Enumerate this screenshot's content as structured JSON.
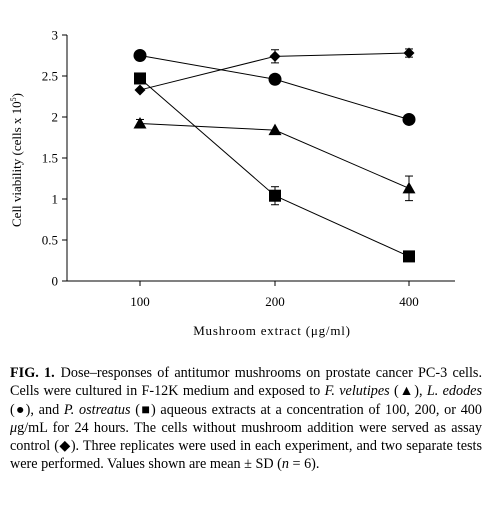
{
  "chart_data": {
    "type": "line",
    "categories": [
      "100",
      "200",
      "400"
    ],
    "ylabel": "Cell viability (cells x 10",
    "ylabel_sup": "5",
    "ylabel_close": ")",
    "xlabel": "Mushroom extract (μg/ml)",
    "ylim": [
      0,
      3
    ],
    "yticks": [
      "0",
      "0.5",
      "1",
      "1.5",
      "2",
      "2.5",
      "3"
    ],
    "grid": false,
    "legend": "none",
    "series": [
      {
        "marker": "diamond",
        "values": [
          2.33,
          2.74,
          2.78
        ],
        "errors": [
          0,
          0.08,
          0.05
        ]
      },
      {
        "marker": "circle",
        "values": [
          2.75,
          2.46,
          1.97
        ],
        "errors": [
          0,
          0,
          0.05
        ]
      },
      {
        "marker": "triangle",
        "values": [
          1.92,
          1.84,
          1.13
        ],
        "errors": [
          0.05,
          0,
          0.15
        ]
      },
      {
        "marker": "square",
        "values": [
          2.47,
          1.04,
          0.3
        ],
        "errors": [
          0,
          0.11,
          0
        ]
      }
    ]
  },
  "caption": {
    "label": "FIG. 1.",
    "t1": "Dose–responses of antitumor mushrooms on prostate cancer PC-3 cells. Cells were cultured in F-12K medium and exposed to ",
    "sp1": "F. velutipes",
    "t2": " (▲), ",
    "sp2": "L. edodes",
    "t3": " (●), and ",
    "sp3": "P. ostreatus",
    "t4": " (■) aqueous extracts at a concentration of 100, 200, or 400 ",
    "mu": "μ",
    "t5": "g/mL for 24 hours. The cells without mushroom addition were served as assay control (◆). Three replicates were used in each experiment, and two separate tests were performed. Values shown are mean ± SD (",
    "n": "n",
    "t6": " = 6)."
  }
}
